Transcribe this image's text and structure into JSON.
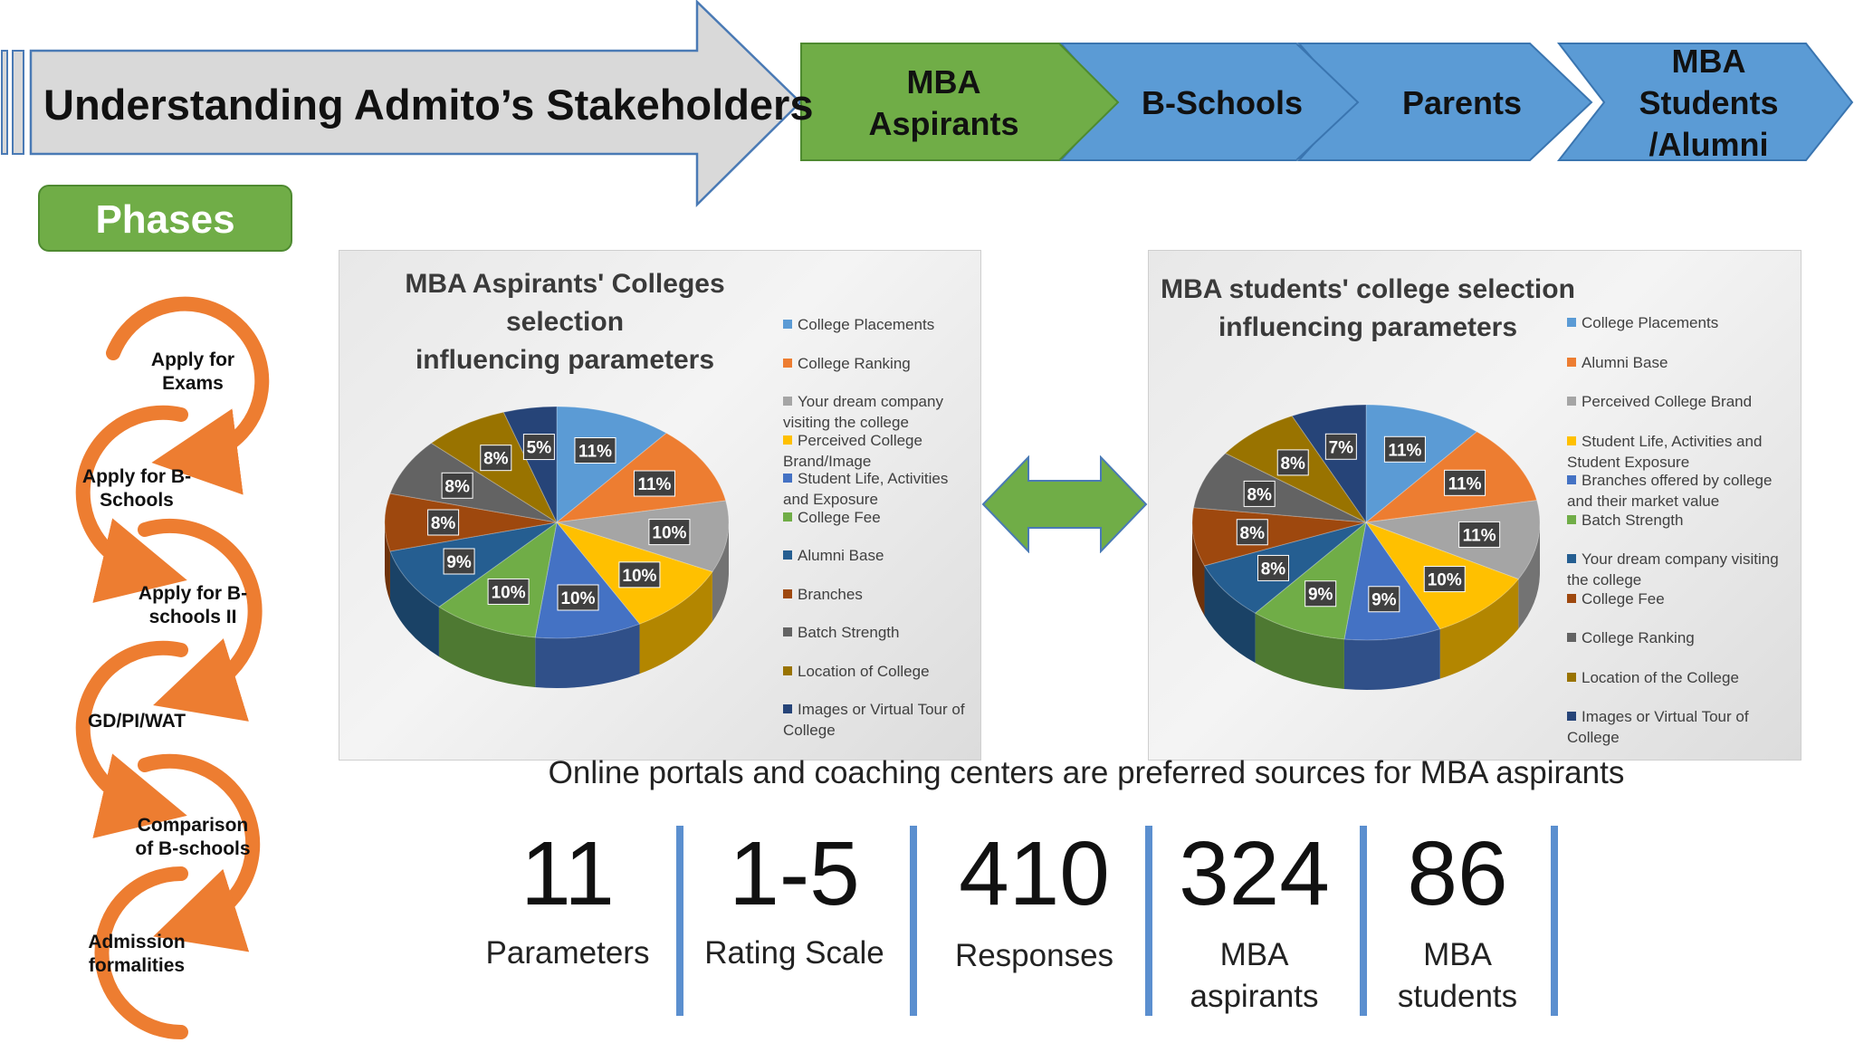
{
  "header": {
    "title": "Understanding Admito’s Stakeholders",
    "stages": [
      {
        "label_lines": [
          "MBA",
          "Aspirants"
        ],
        "color": "#70ad47"
      },
      {
        "label_lines": [
          "B-Schools"
        ],
        "color": "#5b9bd5"
      },
      {
        "label_lines": [
          "Parents"
        ],
        "color": "#5b9bd5"
      },
      {
        "label_lines": [
          "MBA",
          "Students",
          "/Alumni"
        ],
        "color": "#5b9bd5"
      }
    ]
  },
  "phases": {
    "button_label": "Phases",
    "accent_color": "#ed7d31",
    "items": [
      {
        "lines": [
          "Apply for",
          "Exams"
        ]
      },
      {
        "lines": [
          "Apply for B-",
          "Schools"
        ]
      },
      {
        "lines": [
          "Apply for B-",
          "schools II"
        ]
      },
      {
        "lines": [
          "GD/PI/WAT"
        ]
      },
      {
        "lines": [
          "Comparison",
          "of B-schools"
        ]
      },
      {
        "lines": [
          "Admission",
          "formalities"
        ]
      }
    ]
  },
  "chart_data": [
    {
      "type": "pie",
      "title_lines": [
        "MBA Aspirants' Colleges selection",
        "influencing parameters"
      ],
      "legend_position": "right",
      "slices": [
        {
          "label": "College Placements",
          "value": 11,
          "color": "#5b9bd5"
        },
        {
          "label": "College Ranking",
          "value": 11,
          "color": "#ed7d31"
        },
        {
          "label": "Your dream company visiting the college",
          "value": 10,
          "color": "#a5a5a5"
        },
        {
          "label": "Perceived College Brand/Image",
          "value": 10,
          "color": "#ffc000"
        },
        {
          "label": "Student Life, Activities and Exposure",
          "value": 10,
          "color": "#4472c4"
        },
        {
          "label": "College Fee",
          "value": 10,
          "color": "#70ad47"
        },
        {
          "label": "Alumni Base",
          "value": 9,
          "color": "#255e91"
        },
        {
          "label": "Branches",
          "value": 8,
          "color": "#9e480e"
        },
        {
          "label": "Batch Strength",
          "value": 8,
          "color": "#636363"
        },
        {
          "label": "Location of College",
          "value": 8,
          "color": "#997300"
        },
        {
          "label": "Images or Virtual Tour of College",
          "value": 5,
          "color": "#264478"
        }
      ],
      "data_labels": [
        "11%",
        "11%",
        "10%",
        "10%",
        "10%",
        "10%",
        "9%",
        "8%",
        "8%",
        "8%",
        "5%"
      ]
    },
    {
      "type": "pie",
      "title_lines": [
        "MBA students' college selection",
        "influencing parameters"
      ],
      "legend_position": "right",
      "slices": [
        {
          "label": "College Placements",
          "value": 11,
          "color": "#5b9bd5"
        },
        {
          "label": "Alumni Base",
          "value": 11,
          "color": "#ed7d31"
        },
        {
          "label": "Perceived College Brand",
          "value": 11,
          "color": "#a5a5a5"
        },
        {
          "label": "Student Life, Activities and Student Exposure",
          "value": 10,
          "color": "#ffc000"
        },
        {
          "label": "Branches offered by college and their market value",
          "value": 9,
          "color": "#4472c4"
        },
        {
          "label": "Batch Strength",
          "value": 9,
          "color": "#70ad47"
        },
        {
          "label": "Your dream company visiting the college",
          "value": 8,
          "color": "#255e91"
        },
        {
          "label": "College Fee",
          "value": 8,
          "color": "#9e480e"
        },
        {
          "label": "College Ranking",
          "value": 8,
          "color": "#636363"
        },
        {
          "label": "Location of the College",
          "value": 8,
          "color": "#997300"
        },
        {
          "label": "Images or Virtual Tour of College",
          "value": 7,
          "color": "#264478"
        }
      ],
      "data_labels": [
        "11%",
        "11%",
        "11%",
        "10%",
        "9%",
        "9%",
        "8%",
        "8%",
        "8%",
        "8%",
        "7%"
      ]
    }
  ],
  "caption": "Online portals and coaching centers are preferred sources for MBA aspirants",
  "stats": [
    {
      "number": "11",
      "label_lines": [
        "Parameters"
      ]
    },
    {
      "number": "1-5",
      "label_lines": [
        "Rating Scale"
      ]
    },
    {
      "number": "410",
      "label_lines": [
        "Responses"
      ]
    },
    {
      "number": "324",
      "label_lines": [
        "MBA",
        "aspirants"
      ]
    },
    {
      "number": "86",
      "label_lines": [
        "MBA",
        "students"
      ]
    }
  ],
  "colors": {
    "arrow_gray": "#d9d9d9",
    "arrow_border": "#4a7ab5",
    "double_arrow": "#70ad47",
    "divider": "#5b8fcf"
  }
}
